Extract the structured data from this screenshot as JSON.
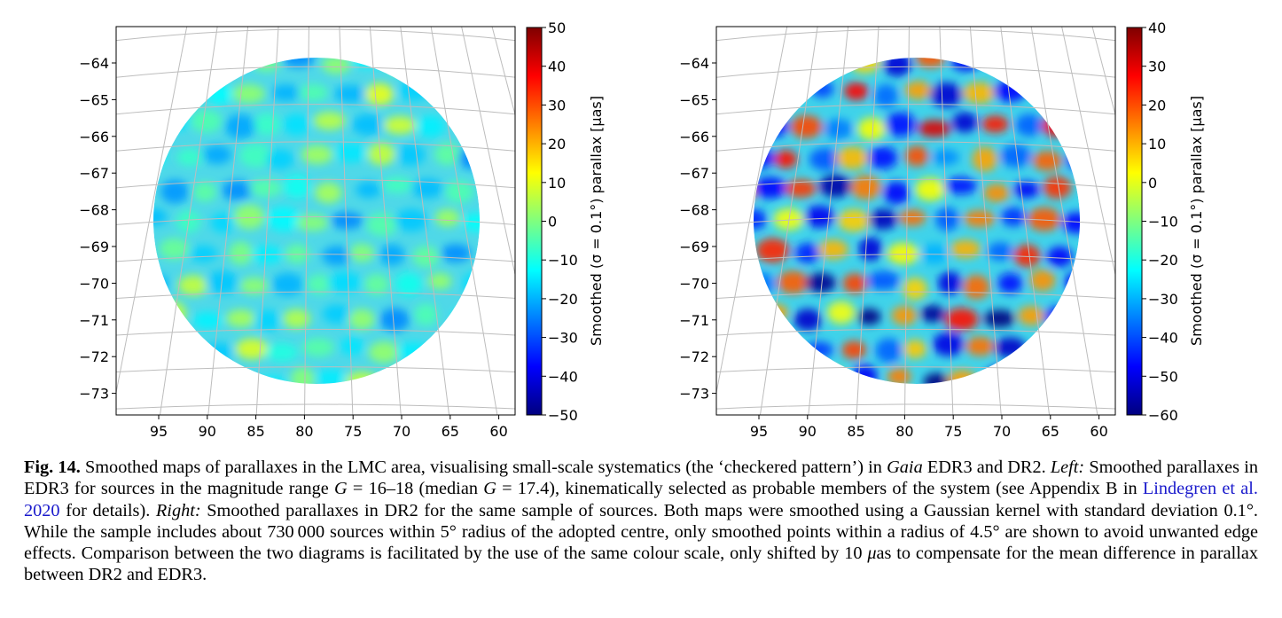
{
  "panels": [
    {
      "name": "left",
      "dataset": "EDR3",
      "yticks": [
        "−64",
        "−65",
        "−66",
        "−67",
        "−68",
        "−69",
        "−70",
        "−71",
        "−72",
        "−73"
      ],
      "xticks": [
        "95",
        "90",
        "85",
        "80",
        "75",
        "70",
        "65",
        "60"
      ],
      "colorbar": {
        "ticks": [
          "50",
          "40",
          "30",
          "20",
          "10",
          "0",
          "−10",
          "−20",
          "−30",
          "−40",
          "−50"
        ],
        "min": -50,
        "max": 50,
        "label": "Smoothed (σ = 0.1°) parallax [μas]"
      }
    },
    {
      "name": "right",
      "dataset": "DR2",
      "yticks": [
        "−64",
        "−65",
        "−66",
        "−67",
        "−68",
        "−69",
        "−70",
        "−71",
        "−72",
        "−73"
      ],
      "xticks": [
        "95",
        "90",
        "85",
        "80",
        "75",
        "70",
        "65",
        "60"
      ],
      "colorbar": {
        "ticks": [
          "40",
          "30",
          "20",
          "10",
          "0",
          "−10",
          "−20",
          "−30",
          "−40",
          "−50",
          "−60"
        ],
        "min": -60,
        "max": 40,
        "label": "Smoothed (σ = 0.1°) parallax [μas]"
      }
    }
  ],
  "colormap": [
    "#00007f",
    "#0000ff",
    "#007fff",
    "#00ffff",
    "#7fff7f",
    "#ffff00",
    "#ff7f00",
    "#ff0000",
    "#7f0000"
  ],
  "caption": {
    "label": "Fig. 14.",
    "t1": " Smoothed maps of parallaxes in the LMC area, visualising small-scale systematics (the ‘checkered pattern’) in ",
    "gaia": "Gaia",
    "t2": " EDR3 and DR2. ",
    "left": "Left:",
    "t3": " Smoothed parallaxes in EDR3 for sources in the magnitude range ",
    "g1": "G",
    "t4": " = 16–18 (median ",
    "g2": "G",
    "t5": " = 17.4), kinematically selected as probable members of the system (see Appendix B in ",
    "ref": "Lindegren et al. 2020",
    "t6": " for details). ",
    "right": "Right:",
    "t7": " Smoothed parallaxes in DR2 for the same sample of sources. Both maps were smoothed using a Gaussian kernel with standard deviation 0.1°. While the sample includes about 730 000 sources within 5° radius of the adopted centre, only smoothed points within a radius of 4.5° are shown to avoid unwanted edge effects. Comparison between the two diagrams is facilitated by the use of the same colour scale, only shifted by 10 ",
    "mu": "μ",
    "t8": "as to compensate for the mean difference in parallax between DR2 and EDR3."
  }
}
